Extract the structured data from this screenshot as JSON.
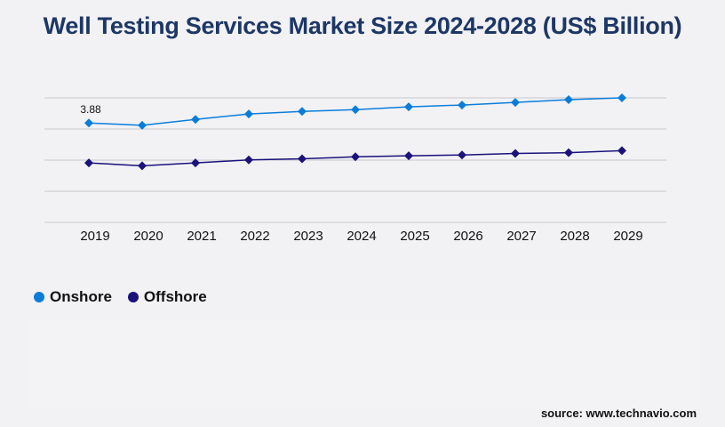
{
  "title": "Well Testing Services Market Size 2024-2028 (US$ Billion)",
  "source": "source: www.technavio.com",
  "chart_data": {
    "type": "line",
    "title": "Well Testing Services Market Size 2024-2028 (US$ Billion)",
    "xlabel": "",
    "ylabel": "",
    "categories": [
      "2019",
      "2020",
      "2021",
      "2022",
      "2023",
      "2024",
      "2025",
      "2026",
      "2027",
      "2028",
      "2029"
    ],
    "series": [
      {
        "name": "Onshore",
        "color": "#0b7dd8",
        "values": [
          3.88,
          3.79,
          4.02,
          4.23,
          4.33,
          4.4,
          4.51,
          4.58,
          4.68,
          4.79,
          4.86
        ]
      },
      {
        "name": "Offshore",
        "color": "#1b127a",
        "values": [
          2.32,
          2.21,
          2.32,
          2.44,
          2.48,
          2.56,
          2.6,
          2.63,
          2.69,
          2.72,
          2.8
        ]
      }
    ],
    "data_labels": [
      {
        "series": "Onshore",
        "category": "2019",
        "text": "3.88"
      }
    ],
    "ylim": [
      0,
      4.86
    ],
    "y_tick_labels_shown": false,
    "grid": true,
    "legend": "bottom-left",
    "marker": "diamond"
  }
}
